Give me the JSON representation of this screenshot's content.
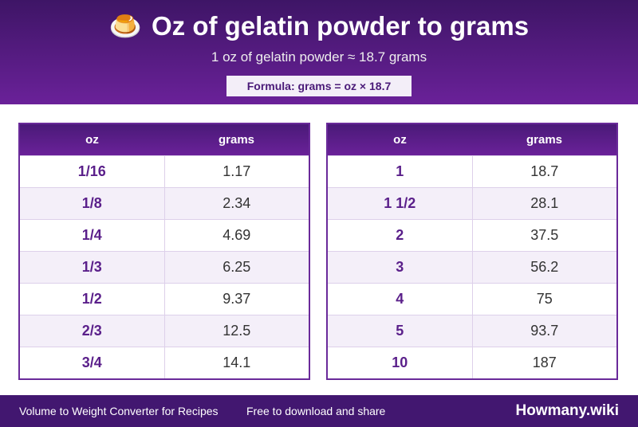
{
  "header": {
    "icon": "🍮",
    "title": "Oz of gelatin powder to grams",
    "subtitle": "1 oz of gelatin powder ≈ 18.7 grams",
    "formula": "Formula: grams = oz × 18.7"
  },
  "tables": [
    {
      "columns": [
        "oz",
        "grams"
      ],
      "rows": [
        [
          "1/16",
          "1.17"
        ],
        [
          "1/8",
          "2.34"
        ],
        [
          "1/4",
          "4.69"
        ],
        [
          "1/3",
          "6.25"
        ],
        [
          "1/2",
          "9.37"
        ],
        [
          "2/3",
          "12.5"
        ],
        [
          "3/4",
          "14.1"
        ]
      ]
    },
    {
      "columns": [
        "oz",
        "grams"
      ],
      "rows": [
        [
          "1",
          "18.7"
        ],
        [
          "1 1/2",
          "28.1"
        ],
        [
          "2",
          "37.5"
        ],
        [
          "3",
          "56.2"
        ],
        [
          "4",
          "75"
        ],
        [
          "5",
          "93.7"
        ],
        [
          "10",
          "187"
        ]
      ]
    }
  ],
  "footer": {
    "left": "Volume to Weight Converter for Recipes",
    "middle": "Free to download and share",
    "brand": "Howmany.wiki"
  }
}
